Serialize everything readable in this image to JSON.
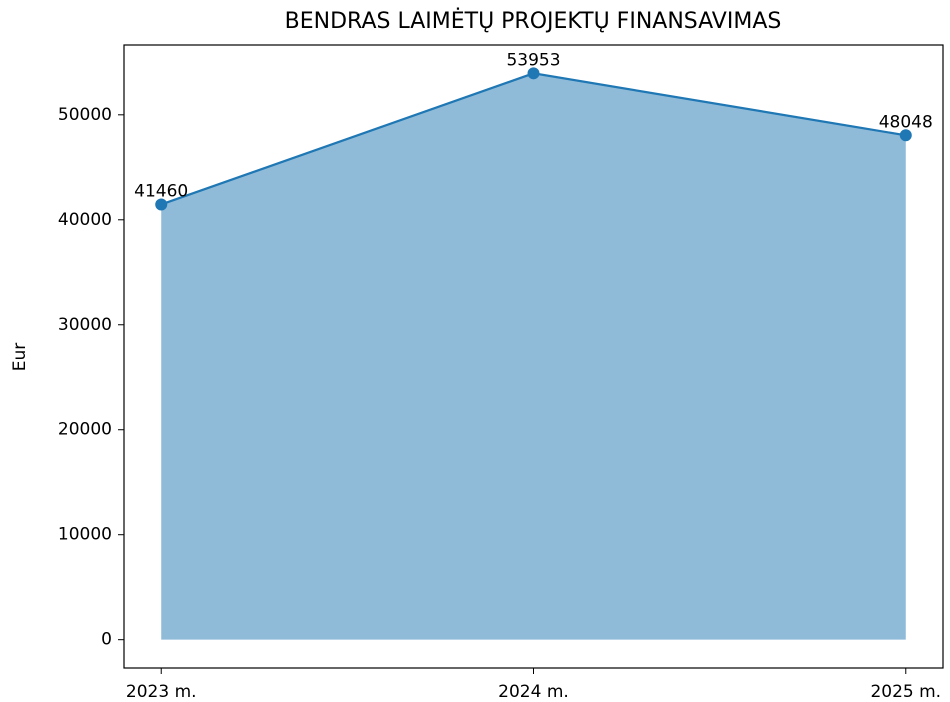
{
  "chart_data": {
    "type": "area",
    "title": "BENDRAS LAIMĖTŲ PROJEKTŲ FINANSAVIMAS",
    "y_label": "Eur",
    "categories": [
      "2023 m.",
      "2024 m.",
      "2025 m."
    ],
    "values": [
      41460,
      53953,
      48048
    ],
    "color": "#1f77b4",
    "fill_color": "#8fbbd9",
    "ylim": [
      -2697.65,
      56650.65
    ],
    "yticks": [
      0,
      10000,
      20000,
      30000,
      40000,
      50000
    ],
    "grid": false
  }
}
